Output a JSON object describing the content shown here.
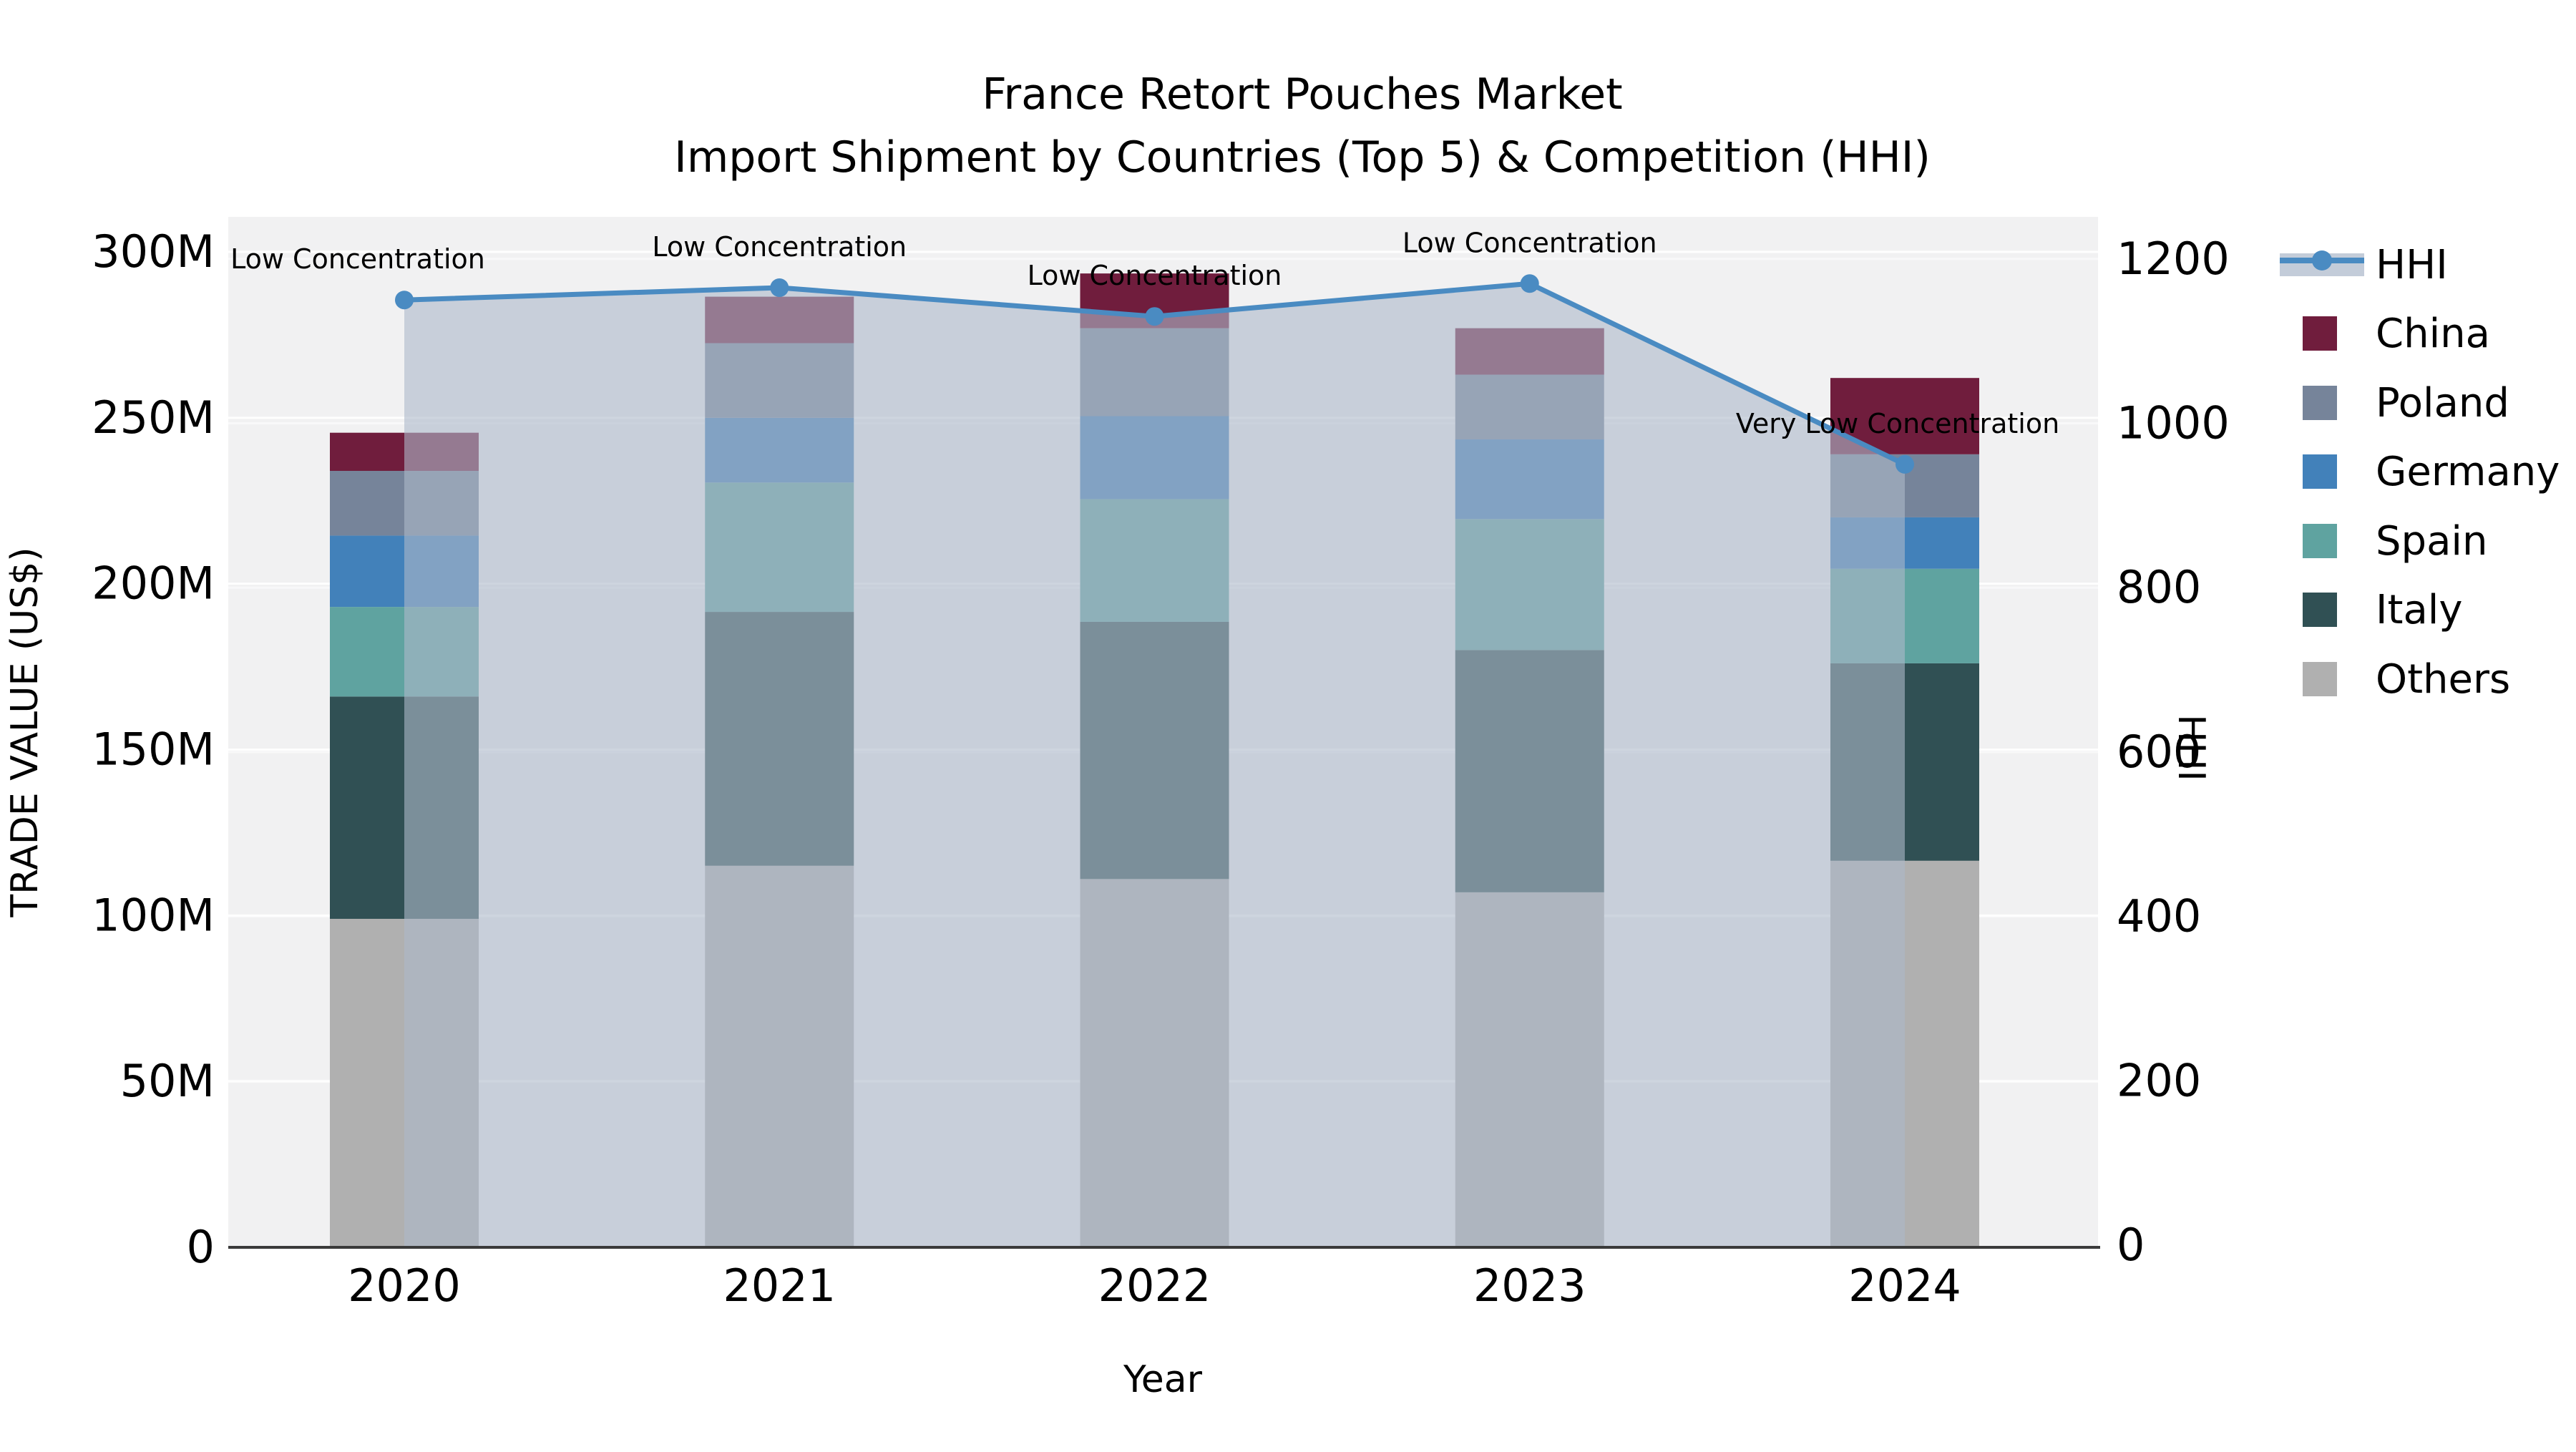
{
  "title": {
    "line1": "France Retort Pouches Market",
    "line2": "Import Shipment by Countries (Top 5) & Competition (HHI)"
  },
  "axes": {
    "x_title": "Year",
    "y_left_title": "TRADE VALUE (US$)",
    "y_right_title": "HHI",
    "y_left_ticks": [
      "0",
      "50M",
      "100M",
      "150M",
      "200M",
      "250M",
      "300M"
    ],
    "y_right_ticks": [
      "0",
      "200",
      "400",
      "600",
      "800",
      "1000",
      "1200"
    ]
  },
  "legend": {
    "items": [
      {
        "label": "HHI",
        "kind": "line",
        "color": "#4a8bc2",
        "band_color": "#c3ccd9"
      },
      {
        "label": "China",
        "kind": "swatch",
        "color": "#701d3d"
      },
      {
        "label": "Poland",
        "kind": "swatch",
        "color": "#76849a"
      },
      {
        "label": "Germany",
        "kind": "swatch",
        "color": "#4281ba"
      },
      {
        "label": "Spain",
        "kind": "swatch",
        "color": "#5fa3a0"
      },
      {
        "label": "Italy",
        "kind": "swatch",
        "color": "#305054"
      },
      {
        "label": "Others",
        "kind": "swatch",
        "color": "#b0b0b0"
      }
    ]
  },
  "chart_data": {
    "type": "bar+line",
    "title": "France Retort Pouches Market — Import Shipment by Countries (Top 5) & Competition (HHI)",
    "xlabel": "Year",
    "ylabel_left": "TRADE VALUE (US$)",
    "ylabel_right": "HHI",
    "ylim_left_millions": [
      0,
      300
    ],
    "ylim_right": [
      0,
      1200
    ],
    "grid": true,
    "legend_position": "right",
    "categories": [
      "2020",
      "2021",
      "2022",
      "2023",
      "2024"
    ],
    "stack_order_bottom_to_top": [
      "Others",
      "Italy",
      "Spain",
      "Germany",
      "Poland",
      "China"
    ],
    "series": [
      {
        "name": "Others",
        "color": "#b0b0b0",
        "values_millions": [
          99,
          115,
          111,
          107,
          116.5
        ]
      },
      {
        "name": "Italy",
        "color": "#305054",
        "values_millions": [
          67,
          76.5,
          77.5,
          73,
          59.5
        ]
      },
      {
        "name": "Spain",
        "color": "#5fa3a0",
        "values_millions": [
          27,
          39,
          37,
          39.5,
          28.5
        ]
      },
      {
        "name": "Germany",
        "color": "#4281ba",
        "values_millions": [
          21.5,
          19.5,
          25,
          24,
          15.5
        ]
      },
      {
        "name": "Poland",
        "color": "#76849a",
        "values_millions": [
          19.5,
          22.5,
          26.5,
          19.5,
          19
        ]
      },
      {
        "name": "China",
        "color": "#701d3d",
        "values_millions": [
          11.5,
          14,
          16.5,
          14,
          23
        ]
      }
    ],
    "bar_totals_millions": [
      245.5,
      286.5,
      293.5,
      277,
      262
    ],
    "line_series": {
      "name": "HHI",
      "axis": "right",
      "color": "#4a8bc2",
      "area_fill": "rgba(174,185,202,0.6)",
      "values": [
        1150,
        1165,
        1130,
        1170,
        950
      ]
    },
    "annotations": [
      {
        "category": "2020",
        "text": "Low Concentration"
      },
      {
        "category": "2021",
        "text": "Low Concentration"
      },
      {
        "category": "2022",
        "text": "Low Concentration"
      },
      {
        "category": "2023",
        "text": "Low Concentration"
      },
      {
        "category": "2024",
        "text": "Very Low Concentration"
      }
    ]
  },
  "colors": {
    "plot_background": "#f1f1f2",
    "gridline": "#ffffff",
    "axis_line": "#3a3a3a",
    "text": "#000000"
  }
}
